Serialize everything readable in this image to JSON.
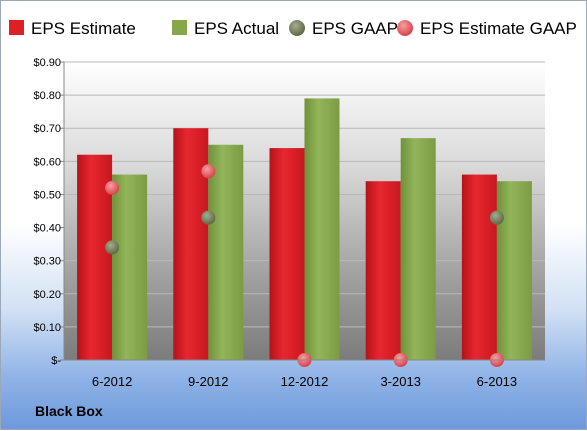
{
  "chart_data": {
    "type": "bar",
    "categories": [
      "6-2012",
      "9-2012",
      "12-2012",
      "3-2013",
      "6-2013"
    ],
    "series": [
      {
        "name": "EPS Estimate",
        "kind": "bar",
        "color": "#dd1f26",
        "values": [
          0.62,
          0.7,
          0.64,
          0.54,
          0.56
        ]
      },
      {
        "name": "EPS Actual",
        "kind": "bar",
        "color": "#86a84a",
        "values": [
          0.56,
          0.65,
          0.79,
          0.67,
          0.54
        ]
      },
      {
        "name": "EPS GAAP",
        "kind": "scatter",
        "color": "#7f8a63",
        "values": [
          0.34,
          0.43,
          null,
          null,
          0.43
        ]
      },
      {
        "name": "EPS Estimate GAAP",
        "kind": "scatter",
        "color": "#e9646a",
        "values": [
          0.52,
          0.57,
          0.0,
          0.0,
          0.0
        ]
      }
    ],
    "y_tick_labels": [
      "$-",
      "$0.10",
      "$0.20",
      "$0.30",
      "$0.40",
      "$0.50",
      "$0.60",
      "$0.70",
      "$0.80",
      "$0.90"
    ],
    "ylim": [
      0,
      0.9
    ],
    "grid": true,
    "legend_position": "top"
  },
  "footer": {
    "company": "Black Box"
  }
}
